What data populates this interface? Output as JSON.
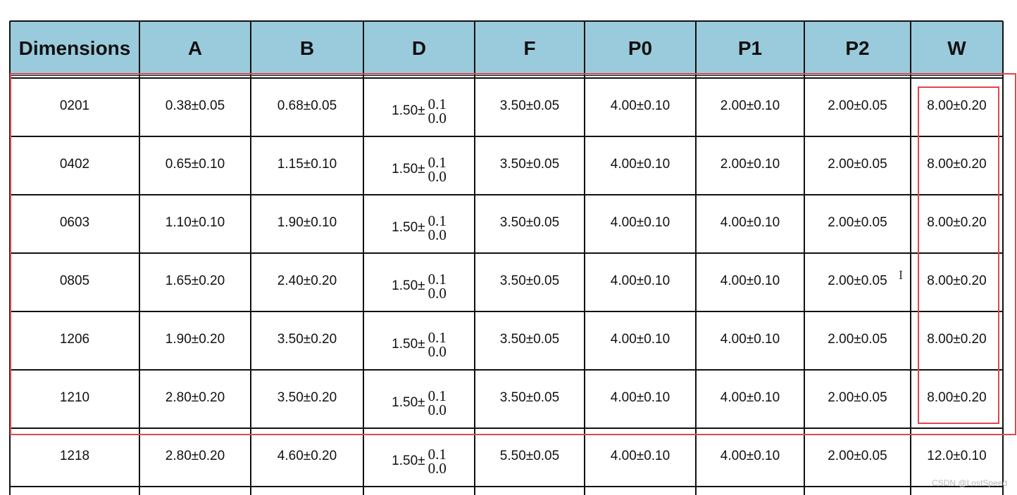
{
  "table": {
    "header": [
      "Dimensions",
      "A",
      "B",
      "D",
      "F",
      "P0",
      "P1",
      "P2",
      "W"
    ],
    "rows": [
      [
        "0201",
        "0.38±0.05",
        "0.68±0.05",
        {
          "base": "1.50±",
          "upper": "0.1",
          "lower": "0.0"
        },
        "3.50±0.05",
        "4.00±0.10",
        "2.00±0.10",
        "2.00±0.05",
        "8.00±0.20"
      ],
      [
        "0402",
        "0.65±0.10",
        "1.15±0.10",
        {
          "base": "1.50±",
          "upper": "0.1",
          "lower": "0.0"
        },
        "3.50±0.05",
        "4.00±0.10",
        "2.00±0.10",
        "2.00±0.05",
        "8.00±0.20"
      ],
      [
        "0603",
        "1.10±0.10",
        "1.90±0.10",
        {
          "base": "1.50±",
          "upper": "0.1",
          "lower": "0.0"
        },
        "3.50±0.05",
        "4.00±0.10",
        "4.00±0.10",
        "2.00±0.05",
        "8.00±0.20"
      ],
      [
        "0805",
        "1.65±0.20",
        "2.40±0.20",
        {
          "base": "1.50±",
          "upper": "0.1",
          "lower": "0.0"
        },
        "3.50±0.05",
        "4.00±0.10",
        "4.00±0.10",
        "2.00±0.05",
        "8.00±0.20"
      ],
      [
        "1206",
        "1.90±0.20",
        "3.50±0.20",
        {
          "base": "1.50±",
          "upper": "0.1",
          "lower": "0.0"
        },
        "3.50±0.05",
        "4.00±0.10",
        "4.00±0.10",
        "2.00±0.05",
        "8.00±0.20"
      ],
      [
        "1210",
        "2.80±0.20",
        "3.50±0.20",
        {
          "base": "1.50±",
          "upper": "0.1",
          "lower": "0.0"
        },
        "3.50±0.05",
        "4.00±0.10",
        "4.00±0.10",
        "2.00±0.05",
        "8.00±0.20"
      ],
      [
        "1218",
        "2.80±0.20",
        "4.60±0.20",
        {
          "base": "1.50±",
          "upper": "0.1",
          "lower": "0.0"
        },
        "5.50±0.05",
        "4.00±0.10",
        "4.00±0.10",
        "2.00±0.05",
        "12.0±0.10"
      ]
    ]
  },
  "watermark": "CSDN @LostSpeed"
}
